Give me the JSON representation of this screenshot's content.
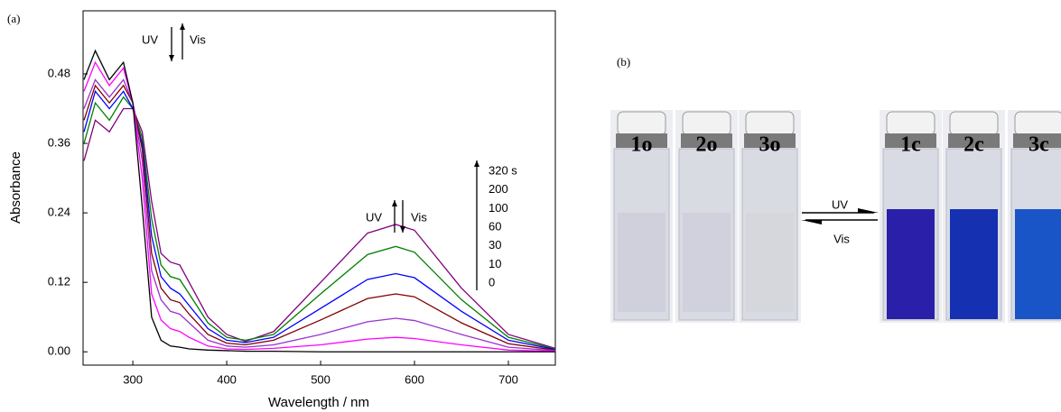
{
  "chart_data": {
    "type": "line",
    "panel_label": "(a)",
    "x_label": "Wavelength / nm",
    "y_label": "Absorbance",
    "annotations": [
      "UV",
      "Vis",
      "UV",
      "Vis"
    ],
    "x": [
      248,
      260,
      275,
      290,
      300,
      310,
      320,
      330,
      340,
      350,
      360,
      380,
      400,
      420,
      450,
      500,
      550,
      580,
      600,
      650,
      700,
      750
    ],
    "series": [
      {
        "name": "320 s",
        "color": "#800080",
        "values": [
          0.33,
          0.4,
          0.38,
          0.42,
          0.42,
          0.38,
          0.26,
          0.17,
          0.155,
          0.15,
          0.12,
          0.06,
          0.03,
          0.018,
          0.035,
          0.12,
          0.205,
          0.22,
          0.21,
          0.11,
          0.03,
          0.006
        ]
      },
      {
        "name": "200",
        "color": "#008000",
        "values": [
          0.36,
          0.43,
          0.4,
          0.44,
          0.42,
          0.37,
          0.23,
          0.15,
          0.13,
          0.125,
          0.1,
          0.05,
          0.025,
          0.02,
          0.03,
          0.1,
          0.168,
          0.182,
          0.172,
          0.09,
          0.025,
          0.005
        ]
      },
      {
        "name": "100",
        "color": "#0000ff",
        "values": [
          0.38,
          0.45,
          0.42,
          0.45,
          0.42,
          0.36,
          0.2,
          0.13,
          0.11,
          0.1,
          0.08,
          0.04,
          0.02,
          0.016,
          0.025,
          0.075,
          0.125,
          0.135,
          0.128,
          0.07,
          0.02,
          0.004
        ]
      },
      {
        "name": "60",
        "color": "#800000",
        "values": [
          0.4,
          0.46,
          0.43,
          0.46,
          0.43,
          0.35,
          0.17,
          0.11,
          0.09,
          0.085,
          0.065,
          0.03,
          0.015,
          0.012,
          0.02,
          0.055,
          0.092,
          0.1,
          0.095,
          0.05,
          0.014,
          0.003
        ]
      },
      {
        "name": "30",
        "color": "#9932cc",
        "values": [
          0.42,
          0.47,
          0.44,
          0.47,
          0.43,
          0.33,
          0.14,
          0.09,
          0.07,
          0.065,
          0.05,
          0.02,
          0.01,
          0.008,
          0.012,
          0.03,
          0.052,
          0.058,
          0.054,
          0.03,
          0.008,
          0.002
        ]
      },
      {
        "name": "10",
        "color": "#ff00ff",
        "values": [
          0.45,
          0.5,
          0.46,
          0.49,
          0.43,
          0.3,
          0.1,
          0.055,
          0.04,
          0.035,
          0.025,
          0.01,
          0.005,
          0.004,
          0.006,
          0.012,
          0.022,
          0.025,
          0.023,
          0.012,
          0.003,
          0.001
        ]
      },
      {
        "name": "0",
        "color": "#000000",
        "values": [
          0.47,
          0.52,
          0.47,
          0.5,
          0.43,
          0.25,
          0.06,
          0.02,
          0.01,
          0.008,
          0.005,
          0.003,
          0.002,
          0.001,
          0.001,
          0,
          0,
          0,
          0,
          0,
          0,
          0
        ]
      }
    ],
    "xlim": [
      247,
      750
    ],
    "xticks": [
      300,
      400,
      500,
      600,
      700
    ],
    "ylim": [
      -0.023,
      0.589
    ],
    "yticks": [
      {
        "value": 0,
        "label": "0.00"
      },
      0.12,
      0.24,
      0.36,
      0.48
    ]
  },
  "photo": {
    "panel_label": "(b)",
    "cuvettes": [
      {
        "label": "1o",
        "color": "#cfd0dc"
      },
      {
        "label": "2o",
        "color": "#d0d1dc"
      },
      {
        "label": "3o",
        "color": "#d6d7dc"
      },
      {
        "label": "1c",
        "color": "#2a1fa8"
      },
      {
        "label": "2c",
        "color": "#1530b0"
      },
      {
        "label": "3c",
        "color": "#1a55c8"
      }
    ],
    "arrow_labels": [
      "UV",
      "Vis"
    ]
  }
}
